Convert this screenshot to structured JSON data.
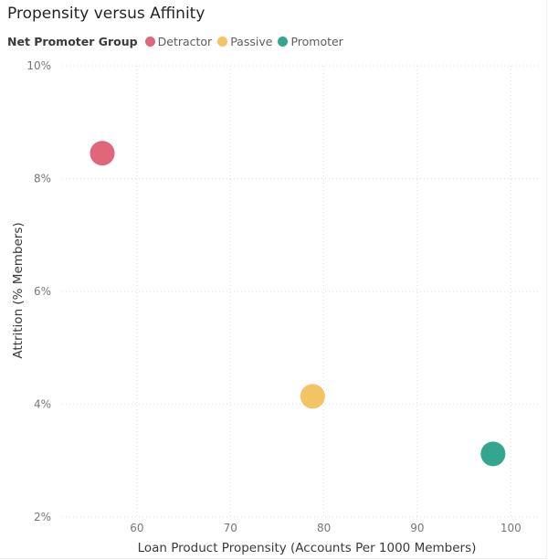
{
  "chart_data": {
    "type": "scatter",
    "title": "Propensity versus Affinity",
    "xlabel": "Loan Product Propensity (Accounts Per 1000 Members)",
    "ylabel": "Attrition (% Members)",
    "legend_title": "Net Promoter Group",
    "legend_position": "top-left",
    "grid": true,
    "xlim": [
      52,
      103
    ],
    "ylim": [
      2,
      10
    ],
    "x_ticks": [
      60,
      70,
      80,
      90,
      100
    ],
    "x_tick_labels": [
      "60",
      "70",
      "80",
      "90",
      "100"
    ],
    "y_ticks": [
      2,
      4,
      6,
      8,
      10
    ],
    "y_tick_labels": [
      "2%",
      "4%",
      "6%",
      "8%",
      "10%"
    ],
    "series": [
      {
        "name": "Detractor",
        "color": "#e0667a",
        "x": [
          56.3
        ],
        "y": [
          8.45
        ]
      },
      {
        "name": "Passive",
        "color": "#f2c463",
        "x": [
          78.8
        ],
        "y": [
          4.14
        ]
      },
      {
        "name": "Promoter",
        "color": "#34a58e",
        "x": [
          98.1
        ],
        "y": [
          3.12
        ]
      }
    ]
  }
}
